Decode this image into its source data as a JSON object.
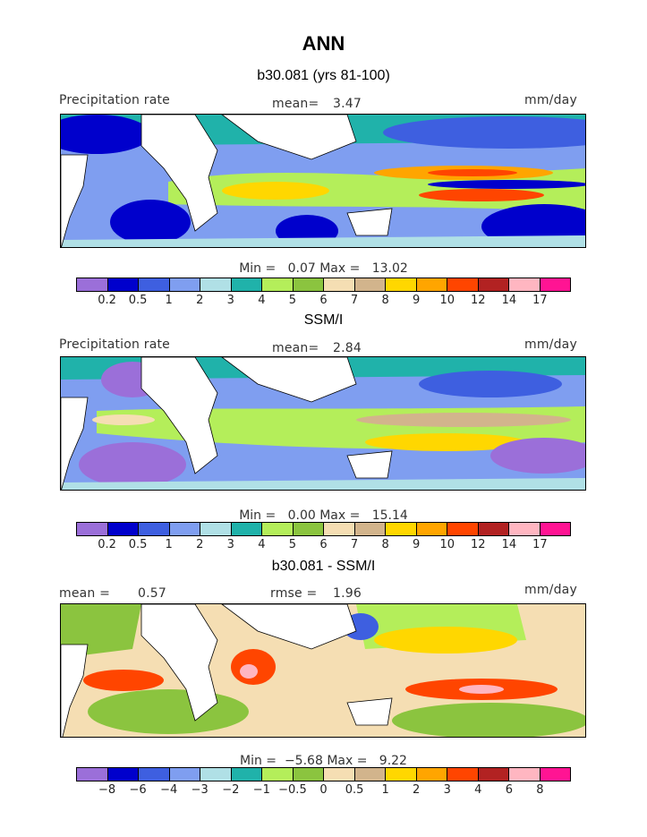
{
  "title": "ANN",
  "palette": [
    "#9b6fd9",
    "#0000cc",
    "#3e5fe0",
    "#7f9ef0",
    "#b0e0e6",
    "#20b2aa",
    "#b4ee5a",
    "#8bc43f",
    "#f5deb3",
    "#d2b48c",
    "#ffd700",
    "#ffa500",
    "#ff4500",
    "#b22222",
    "#ffb6c1",
    "#ff1493"
  ],
  "panels": [
    {
      "title": "b30.081 (yrs 81-100)",
      "variable": "Precipitation rate",
      "stat_label": "mean=",
      "stat_value": "3.47",
      "units": "mm/day",
      "min_label": "Min =",
      "min_value": "0.07",
      "max_label": "Max =",
      "max_value": "13.02",
      "levels": [
        "0.2",
        "0.5",
        "1",
        "2",
        "3",
        "4",
        "5",
        "6",
        "7",
        "8",
        "9",
        "10",
        "12",
        "14",
        "17"
      ]
    },
    {
      "title": "SSM/I",
      "variable": "Precipitation rate",
      "stat_label": "mean=",
      "stat_value": "2.84",
      "units": "mm/day",
      "min_label": "Min =",
      "min_value": "0.00",
      "max_label": "Max =",
      "max_value": "15.14",
      "levels": [
        "0.2",
        "0.5",
        "1",
        "2",
        "3",
        "4",
        "5",
        "6",
        "7",
        "8",
        "9",
        "10",
        "12",
        "14",
        "17"
      ]
    },
    {
      "title": "b30.081 - SSM/I",
      "stat1_label": "mean =",
      "stat1_value": "0.57",
      "stat2_label": "rmse =",
      "stat2_value": "1.96",
      "units": "mm/day",
      "min_label": "Min =",
      "min_value": "−5.68",
      "max_label": "Max =",
      "max_value": "9.22",
      "levels": [
        "−8",
        "−6",
        "−4",
        "−3",
        "−2",
        "−1",
        "−0.5",
        "0",
        "0.5",
        "1",
        "2",
        "3",
        "4",
        "6",
        "8"
      ]
    }
  ]
}
